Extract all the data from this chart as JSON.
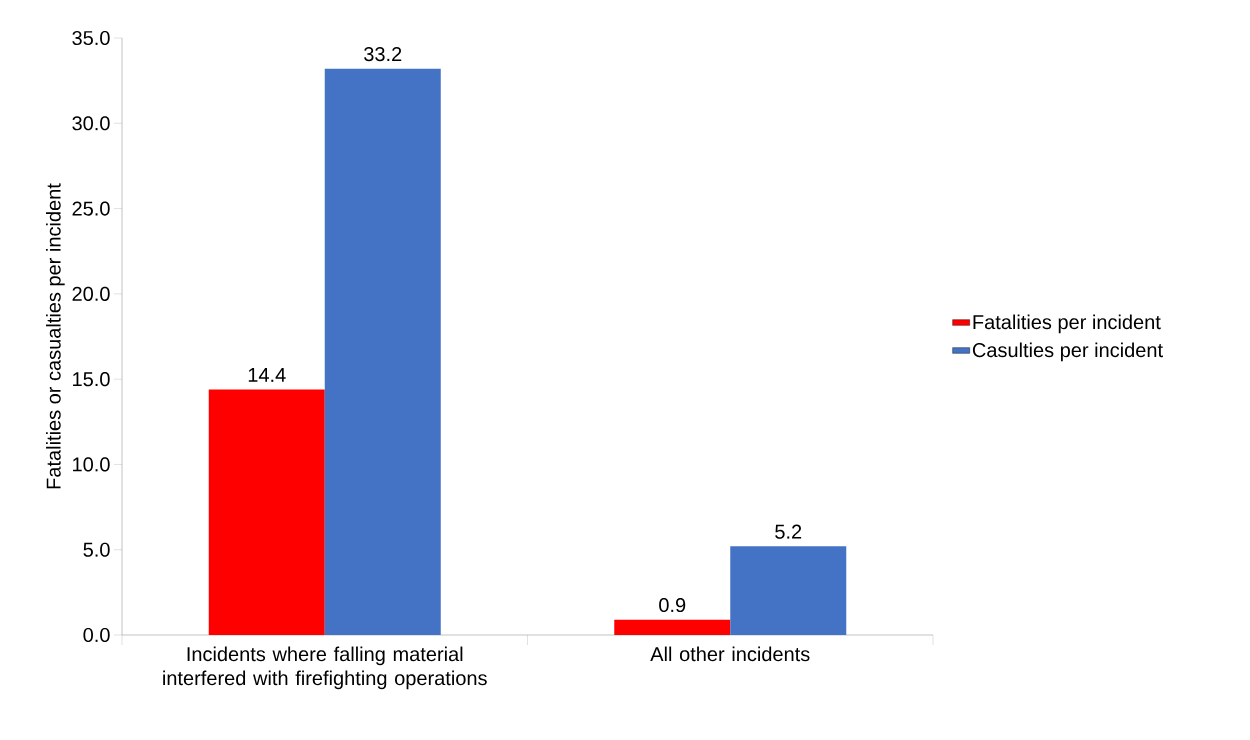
{
  "chart_data": {
    "type": "bar",
    "ylabel": "Fatalities or casualties per incident",
    "categories": [
      "Incidents where falling material interfered with firefighting operations",
      "All other incidents"
    ],
    "series": [
      {
        "name": "Fatalities per incident",
        "color": "#ff0000",
        "values": [
          14.4,
          0.9
        ]
      },
      {
        "name": "Casulties per incident",
        "color": "#4472c4",
        "values": [
          33.2,
          5.2
        ]
      }
    ],
    "ylim": [
      0,
      35
    ],
    "yticks": [
      {
        "value": 0,
        "label": "0.0"
      },
      {
        "value": 5,
        "label": "5.0"
      },
      {
        "value": 10,
        "label": "10.0"
      },
      {
        "value": 15,
        "label": "15.0"
      },
      {
        "value": 20,
        "label": "20.0"
      },
      {
        "value": 25,
        "label": "25.0"
      },
      {
        "value": 30,
        "label": "30.0"
      },
      {
        "value": 35,
        "label": "35.0"
      }
    ],
    "data_labels": true,
    "legend": "right"
  }
}
